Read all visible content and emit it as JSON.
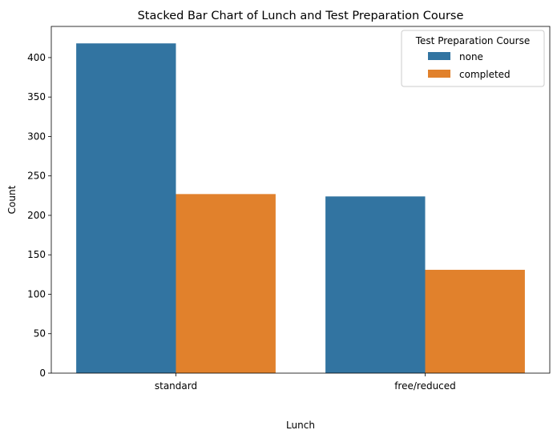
{
  "chart_data": {
    "type": "bar",
    "title": "Stacked Bar Chart of Lunch and Test Preparation Course",
    "xlabel": "Lunch",
    "ylabel": "Count",
    "categories": [
      "standard",
      "free/reduced"
    ],
    "series": [
      {
        "name": "none",
        "values": [
          418,
          224
        ],
        "color": "#3274a1"
      },
      {
        "name": "completed",
        "values": [
          227,
          131
        ],
        "color": "#e1812c"
      }
    ],
    "ylim": [
      0,
      439.5
    ],
    "yticks": [
      0,
      50,
      100,
      150,
      200,
      250,
      300,
      350,
      400
    ],
    "grid": false,
    "legend": {
      "title": "Test Preparation Course",
      "placement": "top-right"
    }
  }
}
